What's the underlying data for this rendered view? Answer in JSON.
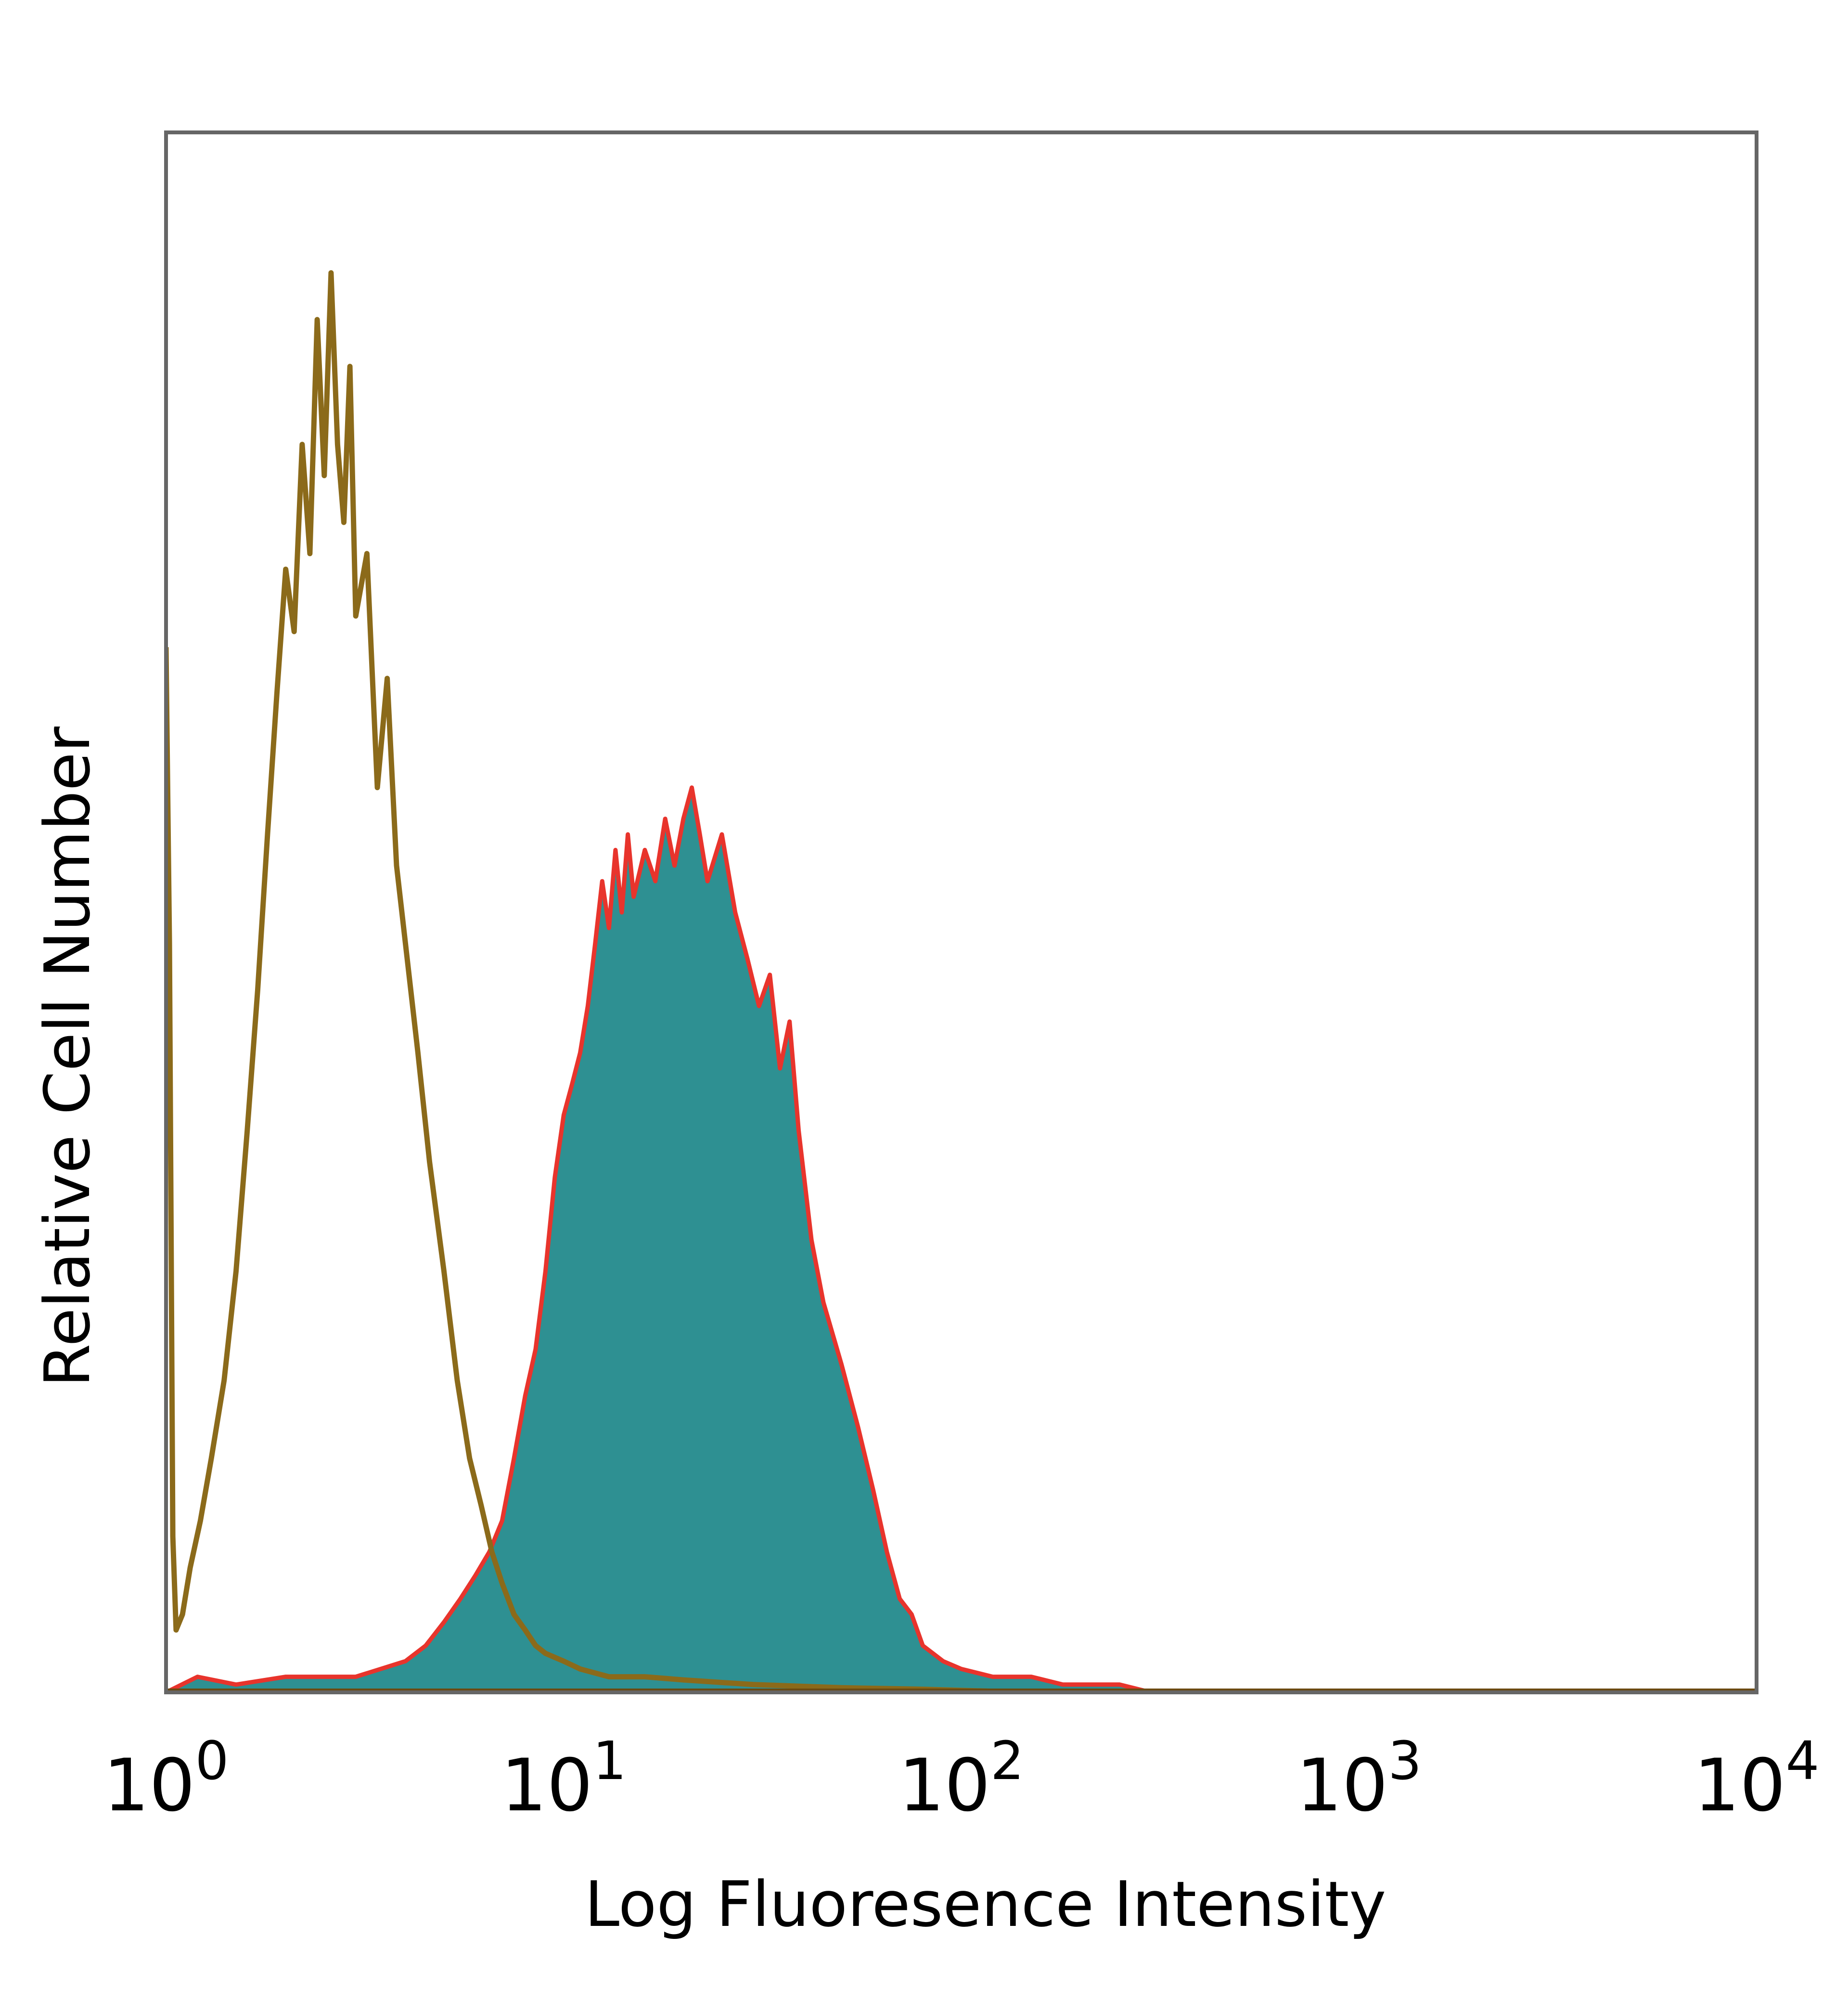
{
  "chart_data": {
    "type": "area",
    "title": "",
    "xlabel": "Log Fluoresence Intensity",
    "ylabel": "Relative Cell Number",
    "xscale": "log",
    "xlim": [
      1,
      10000
    ],
    "ylim": [
      0,
      1.0
    ],
    "x_ticks": [
      {
        "base": "10",
        "exp": "0",
        "value": 1
      },
      {
        "base": "10",
        "exp": "1",
        "value": 10
      },
      {
        "base": "10",
        "exp": "2",
        "value": 100
      },
      {
        "base": "10",
        "exp": "3",
        "value": 1000
      },
      {
        "base": "10",
        "exp": "4",
        "value": 10000
      }
    ],
    "grid": false,
    "legend": "none",
    "series": [
      {
        "style": "outline",
        "color": "#8b6a1a",
        "points": [
          [
            1.0,
            0.67
          ],
          [
            1.02,
            0.48
          ],
          [
            1.04,
            0.1
          ],
          [
            1.06,
            0.04
          ],
          [
            1.1,
            0.05
          ],
          [
            1.15,
            0.08
          ],
          [
            1.22,
            0.11
          ],
          [
            1.3,
            0.15
          ],
          [
            1.4,
            0.2
          ],
          [
            1.5,
            0.27
          ],
          [
            1.6,
            0.36
          ],
          [
            1.7,
            0.45
          ],
          [
            1.8,
            0.55
          ],
          [
            1.9,
            0.64
          ],
          [
            2.0,
            0.72
          ],
          [
            2.1,
            0.68
          ],
          [
            2.2,
            0.8
          ],
          [
            2.3,
            0.73
          ],
          [
            2.4,
            0.88
          ],
          [
            2.5,
            0.78
          ],
          [
            2.6,
            0.91
          ],
          [
            2.7,
            0.8
          ],
          [
            2.8,
            0.75
          ],
          [
            2.9,
            0.85
          ],
          [
            3.0,
            0.69
          ],
          [
            3.2,
            0.73
          ],
          [
            3.4,
            0.58
          ],
          [
            3.6,
            0.65
          ],
          [
            3.8,
            0.53
          ],
          [
            4.0,
            0.48
          ],
          [
            4.3,
            0.41
          ],
          [
            4.6,
            0.34
          ],
          [
            5.0,
            0.27
          ],
          [
            5.4,
            0.2
          ],
          [
            5.8,
            0.15
          ],
          [
            6.2,
            0.12
          ],
          [
            6.6,
            0.09
          ],
          [
            7.0,
            0.07
          ],
          [
            7.5,
            0.05
          ],
          [
            8.0,
            0.04
          ],
          [
            8.5,
            0.03
          ],
          [
            9.0,
            0.025
          ],
          [
            10.0,
            0.02
          ],
          [
            11.0,
            0.015
          ],
          [
            13.0,
            0.01
          ],
          [
            16.0,
            0.01
          ],
          [
            20.0,
            0.008
          ],
          [
            30.0,
            0.005
          ],
          [
            50.0,
            0.003
          ],
          [
            80.0,
            0.002
          ],
          [
            150.0,
            0.0
          ],
          [
            10000.0,
            0.0
          ]
        ]
      },
      {
        "style": "filled",
        "color": "#2e9092",
        "edge_color": "#e8342c",
        "points": [
          [
            1.0,
            0.0
          ],
          [
            1.2,
            0.01
          ],
          [
            1.5,
            0.005
          ],
          [
            2.0,
            0.01
          ],
          [
            3.0,
            0.01
          ],
          [
            4.0,
            0.02
          ],
          [
            4.5,
            0.03
          ],
          [
            5.0,
            0.045
          ],
          [
            5.5,
            0.06
          ],
          [
            6.0,
            0.075
          ],
          [
            6.5,
            0.09
          ],
          [
            7.0,
            0.11
          ],
          [
            7.5,
            0.15
          ],
          [
            8.0,
            0.19
          ],
          [
            8.5,
            0.22
          ],
          [
            9.0,
            0.27
          ],
          [
            9.5,
            0.33
          ],
          [
            10.0,
            0.37
          ],
          [
            10.5,
            0.39
          ],
          [
            11.0,
            0.41
          ],
          [
            11.5,
            0.44
          ],
          [
            12.0,
            0.48
          ],
          [
            12.5,
            0.52
          ],
          [
            13.0,
            0.49
          ],
          [
            13.5,
            0.54
          ],
          [
            14.0,
            0.5
          ],
          [
            14.5,
            0.55
          ],
          [
            15.0,
            0.51
          ],
          [
            16.0,
            0.54
          ],
          [
            17.0,
            0.52
          ],
          [
            18.0,
            0.56
          ],
          [
            19.0,
            0.53
          ],
          [
            20.0,
            0.56
          ],
          [
            21.0,
            0.58
          ],
          [
            22.0,
            0.55
          ],
          [
            23.0,
            0.52
          ],
          [
            25.0,
            0.55
          ],
          [
            27.0,
            0.5
          ],
          [
            29.0,
            0.47
          ],
          [
            31.0,
            0.44
          ],
          [
            33.0,
            0.46
          ],
          [
            35.0,
            0.4
          ],
          [
            37.0,
            0.43
          ],
          [
            39.0,
            0.36
          ],
          [
            42.0,
            0.29
          ],
          [
            45.0,
            0.25
          ],
          [
            50.0,
            0.21
          ],
          [
            55.0,
            0.17
          ],
          [
            60.0,
            0.13
          ],
          [
            65.0,
            0.09
          ],
          [
            70.0,
            0.06
          ],
          [
            75.0,
            0.05
          ],
          [
            80.0,
            0.03
          ],
          [
            90.0,
            0.02
          ],
          [
            100.0,
            0.015
          ],
          [
            120.0,
            0.01
          ],
          [
            150.0,
            0.01
          ],
          [
            180.0,
            0.005
          ],
          [
            250.0,
            0.005
          ],
          [
            300.0,
            0.0
          ],
          [
            10000.0,
            0.0
          ]
        ]
      }
    ]
  }
}
